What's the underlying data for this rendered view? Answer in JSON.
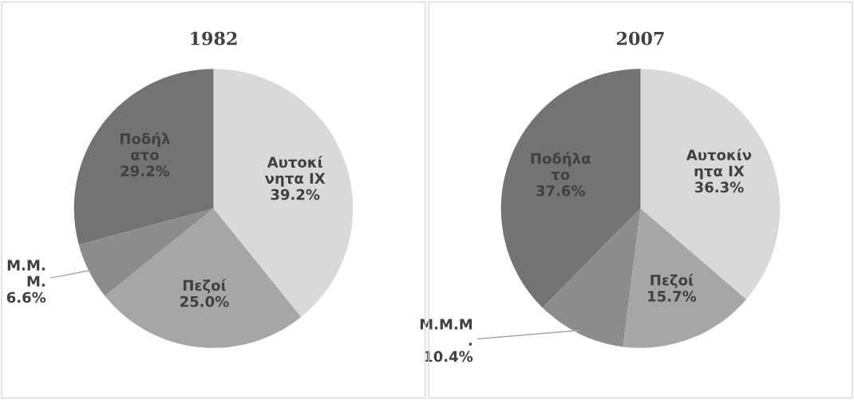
{
  "chart_data": [
    {
      "type": "pie",
      "title": "1982",
      "categories": [
        "Αυτοκί\nνητα ΙΧ",
        "Πεζοί",
        "Μ.Μ.\nΜ.",
        "Ποδήλ\nατο"
      ],
      "values": [
        39.2,
        25.0,
        6.6,
        29.2
      ],
      "value_labels": [
        "39.2%",
        "25.0%",
        "6.6%",
        "29.2%"
      ],
      "colors": [
        "#d9d9d9",
        "#a6a6a6",
        "#8c8c8c",
        "#737373"
      ]
    },
    {
      "type": "pie",
      "title": "2007",
      "categories": [
        "Αυτοκίν\nητα ΙΧ",
        "Πεζοί",
        "Μ.Μ.Μ\n.",
        "Ποδήλα\nτο"
      ],
      "values": [
        36.3,
        15.7,
        10.4,
        37.6
      ],
      "value_labels": [
        "36.3%",
        "15.7%",
        "10.4%",
        "37.6%"
      ],
      "colors": [
        "#d9d9d9",
        "#a6a6a6",
        "#8c8c8c",
        "#737373"
      ]
    }
  ]
}
